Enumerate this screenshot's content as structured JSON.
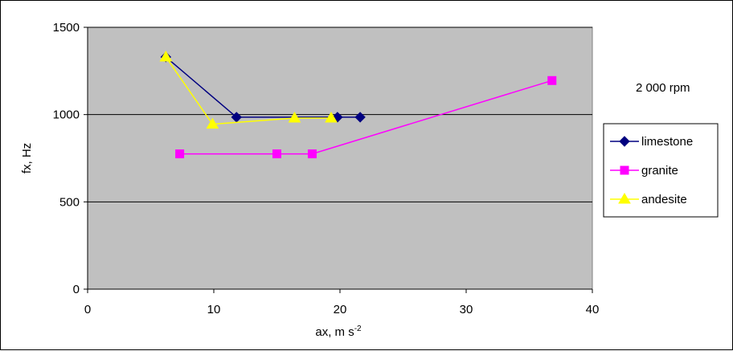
{
  "chart_data": {
    "type": "line",
    "annotation": "2 000 rpm",
    "xlabel": "ax, m s",
    "xlabel_sup": "-2",
    "ylabel": "fx, Hz",
    "xlim": [
      0,
      40
    ],
    "ylim": [
      0,
      1500
    ],
    "xticks": [
      0,
      10,
      20,
      30,
      40
    ],
    "yticks": [
      0,
      500,
      1000,
      1500
    ],
    "grid": "horizontal",
    "legend_position": "right",
    "plot_background": "#c0c0c0",
    "series": [
      {
        "name": "limestone",
        "color": "#000080",
        "marker": "diamond",
        "points": [
          [
            6.2,
            1330
          ],
          [
            11.8,
            985
          ],
          [
            19.8,
            985
          ],
          [
            21.6,
            985
          ]
        ]
      },
      {
        "name": "granite",
        "color": "#ff00ff",
        "marker": "square",
        "points": [
          [
            7.3,
            775
          ],
          [
            15.0,
            775
          ],
          [
            17.8,
            775
          ],
          [
            36.8,
            1195
          ]
        ]
      },
      {
        "name": "andesite",
        "color": "#ffff00",
        "marker": "triangle",
        "points": [
          [
            6.2,
            1330
          ],
          [
            9.9,
            945
          ],
          [
            16.4,
            980
          ],
          [
            19.3,
            980
          ]
        ]
      }
    ]
  }
}
